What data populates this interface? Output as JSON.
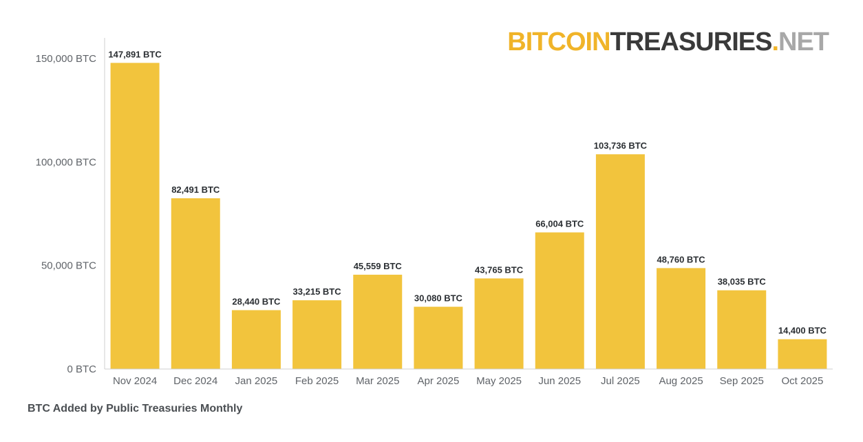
{
  "logo": {
    "part1": "BITCOIN",
    "part2": "TREASURIES",
    "part3": ".",
    "part4": "NET",
    "color1": "#f0b429",
    "color2": "#3a3a3a",
    "color3": "#f0b429",
    "color4": "#a8a8a8"
  },
  "caption": "BTC Added by Public Treasuries Monthly",
  "colors": {
    "bar": "#f2c43d",
    "axis": "#cfcfcf"
  },
  "chart_data": {
    "type": "bar",
    "title": "BTC Added by Public Treasuries Monthly",
    "xlabel": "",
    "ylabel": "",
    "ylim": [
      0,
      150000
    ],
    "yticks": [
      0,
      50000,
      100000,
      150000
    ],
    "ytick_labels": [
      "0 BTC",
      "50,000 BTC",
      "100,000 BTC",
      "150,000 BTC"
    ],
    "grid": false,
    "categories": [
      "Nov 2024",
      "Dec 2024",
      "Jan 2025",
      "Feb 2025",
      "Mar 2025",
      "Apr 2025",
      "May 2025",
      "Jun 2025",
      "Jul 2025",
      "Aug 2025",
      "Sep 2025",
      "Oct 2025"
    ],
    "values": [
      147891,
      82491,
      28440,
      33215,
      45559,
      30080,
      43765,
      66004,
      103736,
      48760,
      38035,
      14400
    ],
    "data_labels": [
      "147,891 BTC",
      "82,491 BTC",
      "28,440 BTC",
      "33,215 BTC",
      "45,559 BTC",
      "30,080 BTC",
      "43,765 BTC",
      "66,004 BTC",
      "103,736 BTC",
      "48,760 BTC",
      "38,035 BTC",
      "14,400 BTC"
    ]
  }
}
